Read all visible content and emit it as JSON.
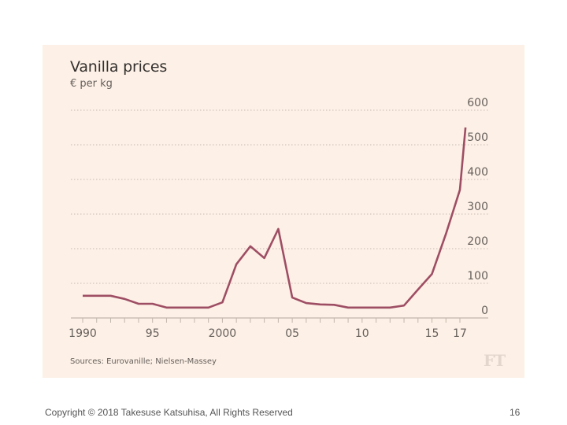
{
  "slide": {
    "copyright": "Copyright © 2018 Takesuse Katsuhisa, All Rights Reserved",
    "page_number": "16"
  },
  "chart_panel": {
    "source": "Sources: Eurovanille; Nielsen-Massey",
    "logo": "FT",
    "colors": {
      "background": "#fdf0e6",
      "line": "#9e4e64",
      "grid": "#c8bcb2",
      "axis": "#c2b7ad",
      "text": "#66605c"
    }
  },
  "chart_data": {
    "type": "line",
    "title": "Vanilla prices",
    "subtitle": "€ per kg",
    "xlabel": "",
    "ylabel": "€ per kg",
    "xlim": [
      1989.2,
      2019
    ],
    "ylim": [
      0,
      600
    ],
    "y_ticks": [
      0,
      100,
      200,
      300,
      400,
      500,
      600
    ],
    "y_tick_labels": [
      "0",
      "100",
      "200",
      "300",
      "400",
      "500",
      "600"
    ],
    "y_axis_side": "right",
    "x_ticks_major": [
      1990,
      1995,
      2000,
      2005,
      2010,
      2015,
      2017
    ],
    "x_tick_labels": [
      "1990",
      "95",
      "2000",
      "05",
      "10",
      "15",
      "17"
    ],
    "x_ticks_minor": [
      1990,
      1991,
      1992,
      1993,
      1994,
      1995,
      1996,
      1997,
      1998,
      1999,
      2000,
      2001,
      2002,
      2003,
      2004,
      2005,
      2006,
      2007,
      2008,
      2009,
      2010,
      2011,
      2012,
      2013,
      2014,
      2015,
      2016,
      2017
    ],
    "grid": "horizontal-dotted",
    "legend": "none",
    "series": [
      {
        "name": "Vanilla price",
        "x": [
          1990,
          1991,
          1992,
          1993,
          1994,
          1995,
          1996,
          1997,
          1998,
          1999,
          2000,
          2001,
          2002,
          2003,
          2004,
          2005,
          2006,
          2007,
          2008,
          2009,
          2010,
          2011,
          2012,
          2013,
          2014,
          2015,
          2016,
          2017,
          2017.4
        ],
        "values": [
          64,
          64,
          64,
          55,
          41,
          41,
          30,
          30,
          30,
          30,
          45,
          155,
          207,
          173,
          257,
          59,
          43,
          39,
          38,
          30,
          30,
          30,
          30,
          36,
          82,
          127,
          243,
          370,
          550
        ]
      }
    ]
  }
}
